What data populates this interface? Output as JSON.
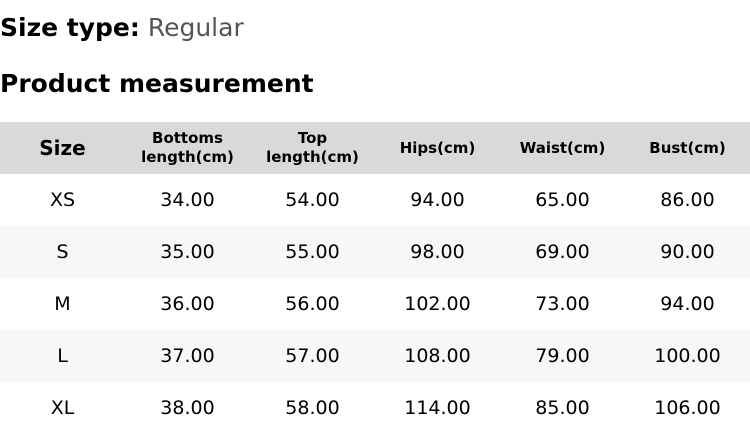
{
  "size_type": {
    "label": "Size type:",
    "value": "Regular"
  },
  "section_title": "Product measurement",
  "table": {
    "headers": [
      "Size",
      "Bottoms length(cm)",
      "Top length(cm)",
      "Hips(cm)",
      "Waist(cm)",
      "Bust(cm)"
    ],
    "rows": [
      [
        "XS",
        "34.00",
        "54.00",
        "94.00",
        "65.00",
        "86.00"
      ],
      [
        "S",
        "35.00",
        "55.00",
        "98.00",
        "69.00",
        "90.00"
      ],
      [
        "M",
        "36.00",
        "56.00",
        "102.00",
        "73.00",
        "94.00"
      ],
      [
        "L",
        "37.00",
        "57.00",
        "108.00",
        "79.00",
        "100.00"
      ],
      [
        "XL",
        "38.00",
        "58.00",
        "114.00",
        "85.00",
        "106.00"
      ]
    ]
  }
}
